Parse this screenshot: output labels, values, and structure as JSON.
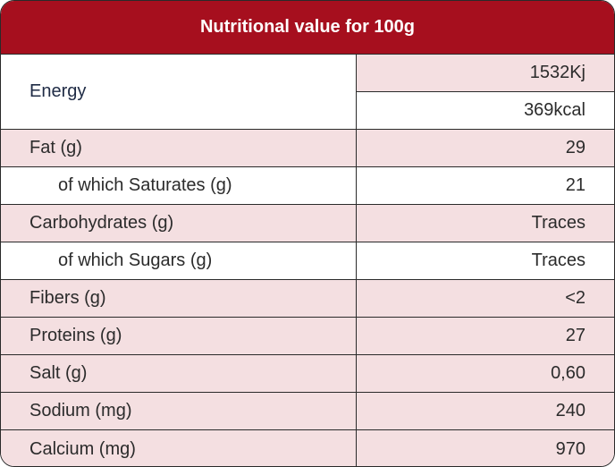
{
  "table": {
    "title": "Nutritional value for 100g",
    "energy": {
      "label": "Energy",
      "kj": "1532Kj",
      "kcal": "369kcal"
    },
    "rows": [
      {
        "label": "Fat (g)",
        "value": "29"
      },
      {
        "label": "of which Saturates (g)",
        "value": "21"
      },
      {
        "label": "Carbohydrates (g)",
        "value": "Traces"
      },
      {
        "label": "of which Sugars (g)",
        "value": "Traces"
      },
      {
        "label": "Fibers (g)",
        "value": "<2"
      },
      {
        "label": "Proteins (g)",
        "value": "27"
      },
      {
        "label": "Salt (g)",
        "value": "0,60"
      },
      {
        "label": "Sodium (mg)",
        "value": "240"
      },
      {
        "label": "Calcium (mg)",
        "value": "970"
      }
    ]
  },
  "colors": {
    "header_bg": "#a60f1e",
    "row_highlight": "#f4dfe1",
    "border": "#2a2a2a"
  }
}
